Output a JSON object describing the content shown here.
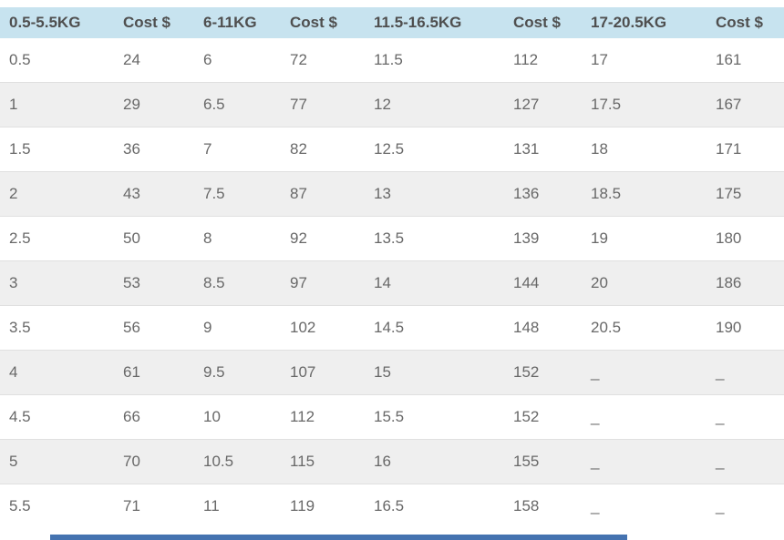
{
  "table": {
    "columns": [
      {
        "label": "0.5-5.5KG"
      },
      {
        "label": "Cost $"
      },
      {
        "label": "6-11KG"
      },
      {
        "label": "Cost $"
      },
      {
        "label": "11.5-16.5KG"
      },
      {
        "label": "Cost $"
      },
      {
        "label": "17-20.5KG"
      },
      {
        "label": "Cost $"
      }
    ],
    "rows": [
      [
        "0.5",
        "24",
        "6",
        "72",
        "11.5",
        "112",
        "17",
        "161"
      ],
      [
        "1",
        "29",
        "6.5",
        "77",
        "12",
        "127",
        "17.5",
        "167"
      ],
      [
        "1.5",
        "36",
        "7",
        "82",
        "12.5",
        "131",
        "18",
        "171"
      ],
      [
        "2",
        "43",
        "7.5",
        "87",
        "13",
        "136",
        "18.5",
        "175"
      ],
      [
        "2.5",
        "50",
        "8",
        "92",
        "13.5",
        "139",
        "19",
        "180"
      ],
      [
        "3",
        "53",
        "8.5",
        "97",
        "14",
        "144",
        "20",
        "186"
      ],
      [
        "3.5",
        "56",
        "9",
        "102",
        "14.5",
        "148",
        "20.5",
        "190"
      ],
      [
        "4",
        "61",
        "9.5",
        "107",
        "15",
        "152",
        "_",
        "_"
      ],
      [
        "4.5",
        "66",
        "10",
        "112",
        "15.5",
        "152",
        "_",
        "_"
      ],
      [
        "5",
        "70",
        "10.5",
        "115",
        "16",
        "155",
        "_",
        "_"
      ],
      [
        "5.5",
        "71",
        "11",
        "119",
        "16.5",
        "158",
        "_",
        "_"
      ]
    ]
  },
  "colors": {
    "header_bg": "#c7e3ef",
    "header_text": "#4f4f4f",
    "cell_text": "#686868",
    "row_alt_bg": "#efefef",
    "row_border": "#e0e0e0",
    "bottom_bar": "#4573b0"
  }
}
